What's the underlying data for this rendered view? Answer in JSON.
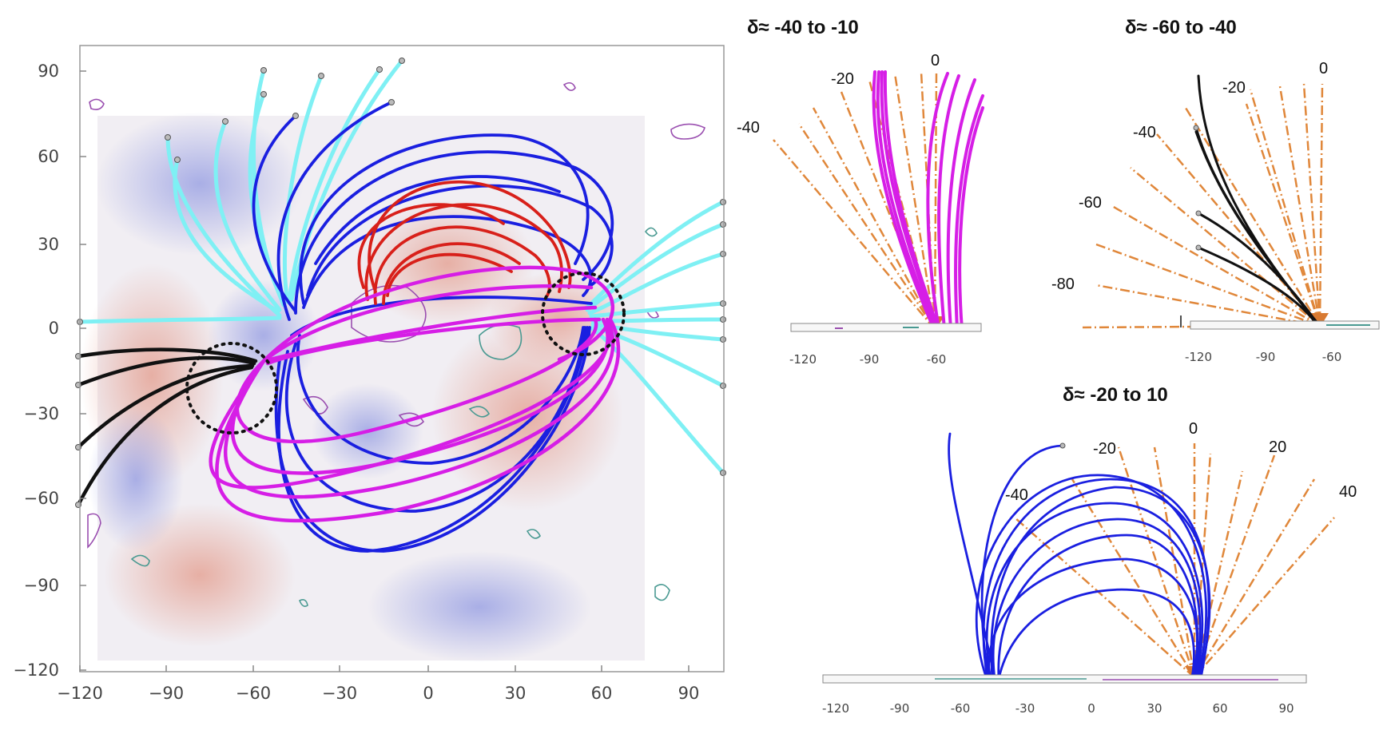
{
  "main_panel": {
    "x_ticks": [
      "−120",
      "−90",
      "−60",
      "−30",
      "0",
      "30",
      "60",
      "90"
    ],
    "y_ticks": [
      "90",
      "60",
      "30",
      "0",
      "−30",
      "−60",
      "−90",
      "−120"
    ]
  },
  "inset_a": {
    "title": "δ≈ -40 to -10",
    "angle_labels": [
      "-40",
      "-20",
      "0"
    ],
    "x_ticks": [
      "-120",
      "-90",
      "-60"
    ]
  },
  "inset_b": {
    "title": "δ≈ -60 to -40",
    "angle_labels": [
      "-80",
      "-60",
      "-40",
      "-20",
      "0"
    ],
    "x_ticks": [
      "-120",
      "-90",
      "-60"
    ]
  },
  "inset_c": {
    "title": "δ≈ -20 to 10",
    "angle_labels": [
      "-40",
      "-20",
      "0",
      "20",
      "40"
    ],
    "x_ticks": [
      "-120",
      "-90",
      "-60",
      "-30",
      "0",
      "30",
      "60",
      "90"
    ]
  },
  "colors": {
    "black_lines": "#111111",
    "cyan_lines": "#7ff0f4",
    "blue_lines": "#1a1fe0",
    "red_lines": "#d8201a",
    "magenta_lines": "#d61ee6",
    "guide_lines": "#e0873a",
    "contour_purple": "#9a4fb0",
    "contour_teal": "#4a9a92"
  }
}
